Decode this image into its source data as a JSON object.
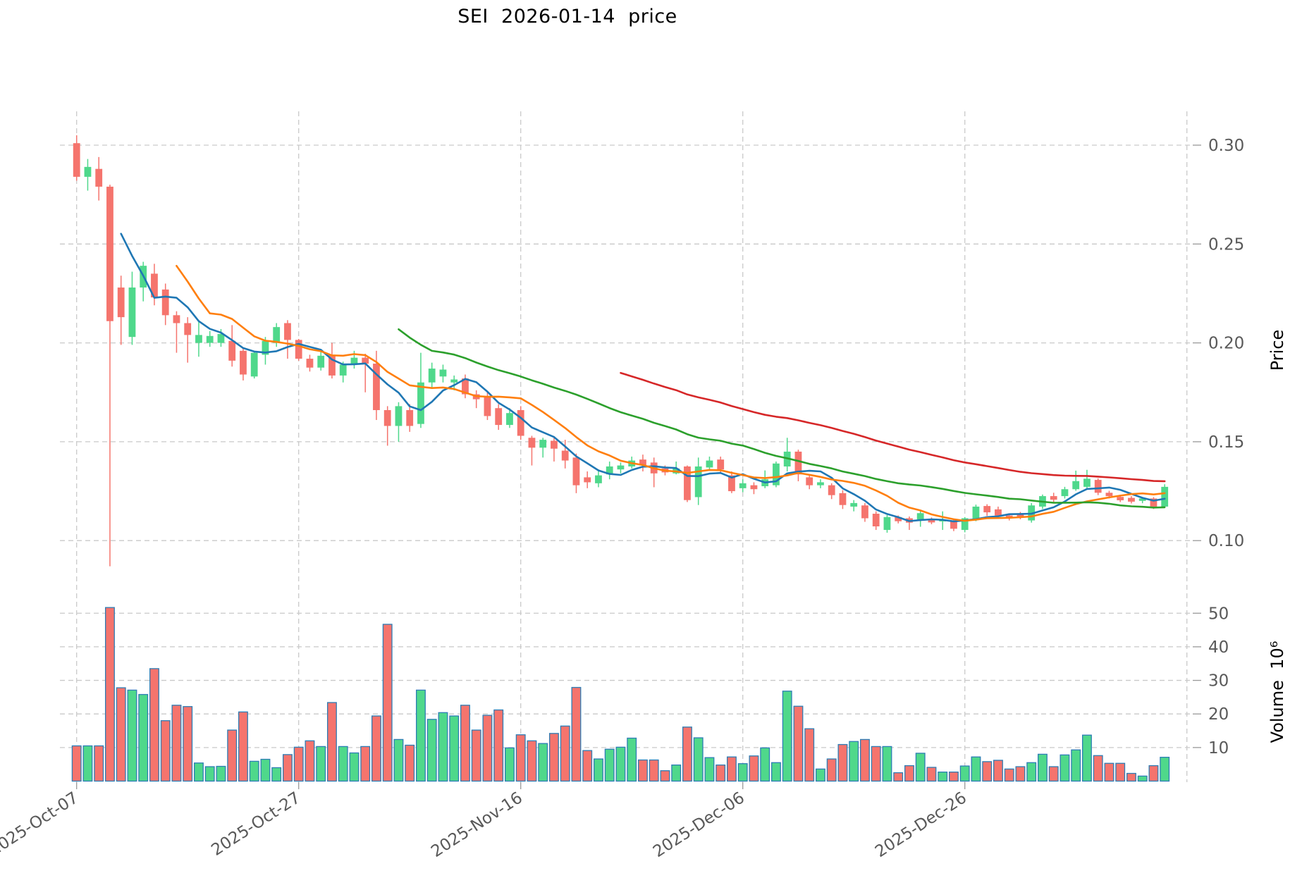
{
  "title": "SEI  2026-01-14  price",
  "axis_labels": {
    "price": "Price",
    "volume": "Volume  10⁶"
  },
  "colors": {
    "background": "#ffffff",
    "candle_up": "#4fd88b",
    "candle_down": "#f5746d",
    "volume_bar_edge": "#2d7db5",
    "ma_blue": "#1f77b4",
    "ma_orange": "#ff7f0e",
    "ma_green": "#2ca02c",
    "ma_red": "#d62728",
    "grid": "#c9c9c9",
    "tick_text": "#595959",
    "tick_mark": "#999999",
    "title_text": "#000000"
  },
  "chart_data": {
    "type": "candlestick",
    "title": "SEI  2026-01-14  price",
    "start_date": "2025-10-07",
    "frequency": "daily",
    "x_ticks": [
      {
        "day": 0,
        "label": "2025-Oct-07"
      },
      {
        "day": 20,
        "label": "2025-Oct-27"
      },
      {
        "day": 40,
        "label": "2025-Nov-16"
      },
      {
        "day": 60,
        "label": "2025-Dec-06"
      },
      {
        "day": 80,
        "label": "2025-Dec-26"
      }
    ],
    "price_ticks": [
      0.3,
      0.25,
      0.2,
      0.15,
      0.1
    ],
    "volume_ticks_millions": [
      50,
      40,
      30,
      20,
      10
    ],
    "price_axis_range": [
      0.075,
      0.315
    ],
    "grid": true,
    "moving_averages": [
      {
        "kind": "sma",
        "window": 5,
        "color_key": "ma_blue"
      },
      {
        "kind": "sma",
        "window": 10,
        "color_key": "ma_orange"
      },
      {
        "kind": "sma",
        "window": 30,
        "color_key": "ma_green"
      },
      {
        "kind": "ema",
        "window": 50,
        "color_key": "ma_red"
      }
    ],
    "columns": [
      "open",
      "high",
      "low",
      "close",
      "volume_millions"
    ],
    "candles": [
      [
        0.301,
        0.305,
        0.282,
        0.284,
        10.5
      ],
      [
        0.284,
        0.293,
        0.277,
        0.289,
        10.5
      ],
      [
        0.288,
        0.294,
        0.272,
        0.279,
        10.5
      ],
      [
        0.279,
        0.28,
        0.087,
        0.211,
        51.7
      ],
      [
        0.228,
        0.234,
        0.199,
        0.213,
        27.8
      ],
      [
        0.203,
        0.236,
        0.199,
        0.228,
        27.1
      ],
      [
        0.228,
        0.241,
        0.221,
        0.239,
        25.8
      ],
      [
        0.235,
        0.24,
        0.219,
        0.223,
        33.5
      ],
      [
        0.227,
        0.23,
        0.209,
        0.214,
        18.0
      ],
      [
        0.214,
        0.216,
        0.195,
        0.21,
        22.6
      ],
      [
        0.21,
        0.213,
        0.19,
        0.204,
        22.2
      ],
      [
        0.2,
        0.211,
        0.193,
        0.204,
        5.4
      ],
      [
        0.2,
        0.206,
        0.198,
        0.2035,
        4.3
      ],
      [
        0.2,
        0.207,
        0.198,
        0.2045,
        4.4
      ],
      [
        0.201,
        0.209,
        0.188,
        0.191,
        15.2
      ],
      [
        0.196,
        0.197,
        0.181,
        0.184,
        20.6
      ],
      [
        0.183,
        0.196,
        0.182,
        0.195,
        5.9
      ],
      [
        0.194,
        0.203,
        0.189,
        0.201,
        6.5
      ],
      [
        0.2,
        0.21,
        0.198,
        0.208,
        4.0
      ],
      [
        0.21,
        0.2115,
        0.192,
        0.2015,
        7.9
      ],
      [
        0.2015,
        0.202,
        0.191,
        0.192,
        10.1
      ],
      [
        0.192,
        0.194,
        0.1855,
        0.1875,
        12.0
      ],
      [
        0.1875,
        0.196,
        0.186,
        0.1935,
        10.3
      ],
      [
        0.194,
        0.2,
        0.182,
        0.1835,
        23.4
      ],
      [
        0.1835,
        0.1905,
        0.18,
        0.189,
        10.3
      ],
      [
        0.189,
        0.196,
        0.187,
        0.1925,
        8.4
      ],
      [
        0.1925,
        0.1945,
        0.175,
        0.1895,
        10.3
      ],
      [
        0.1895,
        0.196,
        0.161,
        0.166,
        19.4
      ],
      [
        0.166,
        0.168,
        0.148,
        0.158,
        46.7
      ],
      [
        0.158,
        0.17,
        0.15,
        0.168,
        12.4
      ],
      [
        0.166,
        0.169,
        0.155,
        0.158,
        10.7
      ],
      [
        0.159,
        0.195,
        0.157,
        0.18,
        27.1
      ],
      [
        0.18,
        0.19,
        0.177,
        0.187,
        18.4
      ],
      [
        0.183,
        0.189,
        0.18,
        0.1865,
        20.4
      ],
      [
        0.18,
        0.1835,
        0.176,
        0.1815,
        19.4
      ],
      [
        0.182,
        0.184,
        0.172,
        0.174,
        22.6
      ],
      [
        0.174,
        0.176,
        0.167,
        0.1715,
        15.2
      ],
      [
        0.173,
        0.175,
        0.161,
        0.163,
        19.6
      ],
      [
        0.167,
        0.169,
        0.156,
        0.1585,
        21.2
      ],
      [
        0.1585,
        0.167,
        0.157,
        0.1645,
        9.9
      ],
      [
        0.166,
        0.168,
        0.151,
        0.153,
        13.8
      ],
      [
        0.152,
        0.153,
        0.138,
        0.147,
        12.0
      ],
      [
        0.147,
        0.152,
        0.142,
        0.151,
        11.2
      ],
      [
        0.1505,
        0.152,
        0.14,
        0.1465,
        14.2
      ],
      [
        0.1455,
        0.151,
        0.1365,
        0.1405,
        16.4
      ],
      [
        0.142,
        0.144,
        0.124,
        0.128,
        27.9
      ],
      [
        0.132,
        0.135,
        0.1265,
        0.1295,
        9.1
      ],
      [
        0.129,
        0.136,
        0.127,
        0.133,
        6.6
      ],
      [
        0.1335,
        0.14,
        0.131,
        0.1375,
        9.5
      ],
      [
        0.136,
        0.1395,
        0.134,
        0.138,
        10.1
      ],
      [
        0.1375,
        0.1425,
        0.1365,
        0.1405,
        12.8
      ],
      [
        0.141,
        0.1435,
        0.135,
        0.138,
        6.3
      ],
      [
        0.1395,
        0.142,
        0.127,
        0.134,
        6.3
      ],
      [
        0.1365,
        0.138,
        0.133,
        0.1345,
        3.1
      ],
      [
        0.134,
        0.14,
        0.1335,
        0.1365,
        4.8
      ],
      [
        0.1375,
        0.138,
        0.1195,
        0.1205,
        16.1
      ],
      [
        0.122,
        0.142,
        0.118,
        0.1375,
        12.9
      ],
      [
        0.137,
        0.1425,
        0.136,
        0.1405,
        7.0
      ],
      [
        0.141,
        0.1425,
        0.1345,
        0.136,
        4.8
      ],
      [
        0.133,
        0.135,
        0.124,
        0.125,
        7.2
      ],
      [
        0.1265,
        0.131,
        0.1245,
        0.129,
        5.2
      ],
      [
        0.128,
        0.1295,
        0.1235,
        0.126,
        7.5
      ],
      [
        0.1275,
        0.1355,
        0.1265,
        0.131,
        9.9
      ],
      [
        0.128,
        0.14,
        0.127,
        0.139,
        5.5
      ],
      [
        0.1375,
        0.152,
        0.135,
        0.145,
        26.8
      ],
      [
        0.145,
        0.146,
        0.13,
        0.1335,
        22.3
      ],
      [
        0.132,
        0.133,
        0.126,
        0.128,
        15.6
      ],
      [
        0.128,
        0.131,
        0.1265,
        0.1295,
        3.6
      ],
      [
        0.128,
        0.129,
        0.121,
        0.123,
        6.6
      ],
      [
        0.124,
        0.1255,
        0.116,
        0.118,
        10.9
      ],
      [
        0.1172,
        0.1205,
        0.1148,
        0.119,
        11.8
      ],
      [
        0.1178,
        0.119,
        0.1095,
        0.1113,
        12.4
      ],
      [
        0.1136,
        0.1148,
        0.1054,
        0.1072,
        10.3
      ],
      [
        0.1054,
        0.113,
        0.104,
        0.1119,
        10.3
      ],
      [
        0.1119,
        0.1127,
        0.1087,
        0.1098,
        2.5
      ],
      [
        0.1113,
        0.1122,
        0.1054,
        0.1091,
        4.6
      ],
      [
        0.1107,
        0.115,
        0.107,
        0.1139,
        8.3
      ],
      [
        0.1108,
        0.1117,
        0.1083,
        0.1092,
        4.1
      ],
      [
        0.1097,
        0.1148,
        0.1054,
        0.1105,
        2.7
      ],
      [
        0.1102,
        0.1111,
        0.1048,
        0.106,
        2.7
      ],
      [
        0.1054,
        0.1119,
        0.1042,
        0.1113,
        4.5
      ],
      [
        0.1108,
        0.1182,
        0.1098,
        0.1172,
        7.2
      ],
      [
        0.1175,
        0.1184,
        0.1125,
        0.1143,
        5.8
      ],
      [
        0.1158,
        0.1172,
        0.1113,
        0.1127,
        6.2
      ],
      [
        0.1127,
        0.1136,
        0.1102,
        0.1113,
        3.6
      ],
      [
        0.1136,
        0.1145,
        0.1108,
        0.1119,
        4.3
      ],
      [
        0.1102,
        0.119,
        0.1091,
        0.1178,
        5.5
      ],
      [
        0.1172,
        0.1233,
        0.116,
        0.1225,
        8.0
      ],
      [
        0.1225,
        0.1242,
        0.1189,
        0.1207,
        4.3
      ],
      [
        0.1225,
        0.1272,
        0.1213,
        0.126,
        7.8
      ],
      [
        0.126,
        0.1354,
        0.1252,
        0.1301,
        9.3
      ],
      [
        0.1272,
        0.1358,
        0.126,
        0.1313,
        13.7
      ],
      [
        0.1307,
        0.1315,
        0.123,
        0.1242,
        7.6
      ],
      [
        0.1242,
        0.1252,
        0.1213,
        0.1225,
        5.3
      ],
      [
        0.1221,
        0.1232,
        0.1195,
        0.1204,
        5.3
      ],
      [
        0.1216,
        0.1225,
        0.1188,
        0.1197,
        2.3
      ],
      [
        0.1201,
        0.122,
        0.1189,
        0.1213,
        1.5
      ],
      [
        0.1213,
        0.122,
        0.116,
        0.1172,
        4.6
      ],
      [
        0.1172,
        0.1285,
        0.1165,
        0.1272,
        7.1
      ]
    ]
  }
}
